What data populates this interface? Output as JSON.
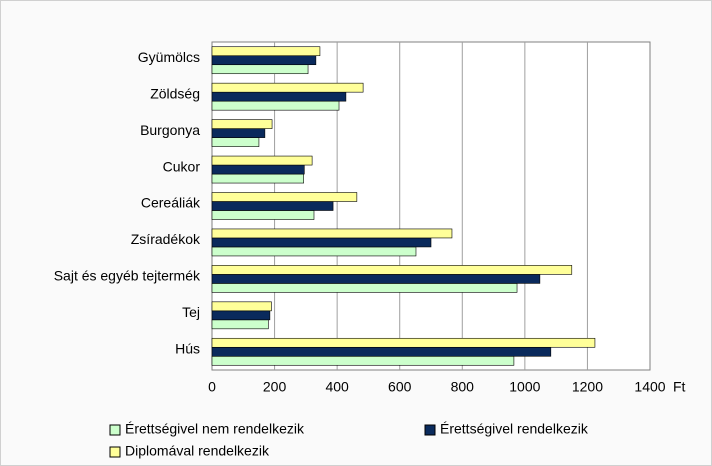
{
  "chart_data": {
    "type": "hbar",
    "categories": [
      "Gyümölcs",
      "Zöldség",
      "Burgonya",
      "Cukor",
      "Cereáliák",
      "Zsíradékok",
      "Sajt és egyéb tejtermék",
      "Tej",
      "Hús"
    ],
    "series": [
      {
        "name": "Érettségivel nem rendelkezik",
        "color": "#ccffcc",
        "values": [
          307,
          406,
          150,
          293,
          326,
          652,
          975,
          180,
          965
        ]
      },
      {
        "name": "Érettségivel rendelkezik",
        "color": "#0a2a5c",
        "values": [
          332,
          428,
          169,
          295,
          387,
          700,
          1048,
          185,
          1083
        ]
      },
      {
        "name": "Diplomával rendelkezik",
        "color": "#ffff99",
        "values": [
          345,
          483,
          192,
          320,
          463,
          767,
          1150,
          190,
          1224
        ]
      }
    ],
    "xlabel": "Ft",
    "xlim": [
      0,
      1400
    ],
    "xticks": [
      0,
      200,
      400,
      600,
      800,
      1000,
      1200,
      1400
    ],
    "grid": true
  }
}
